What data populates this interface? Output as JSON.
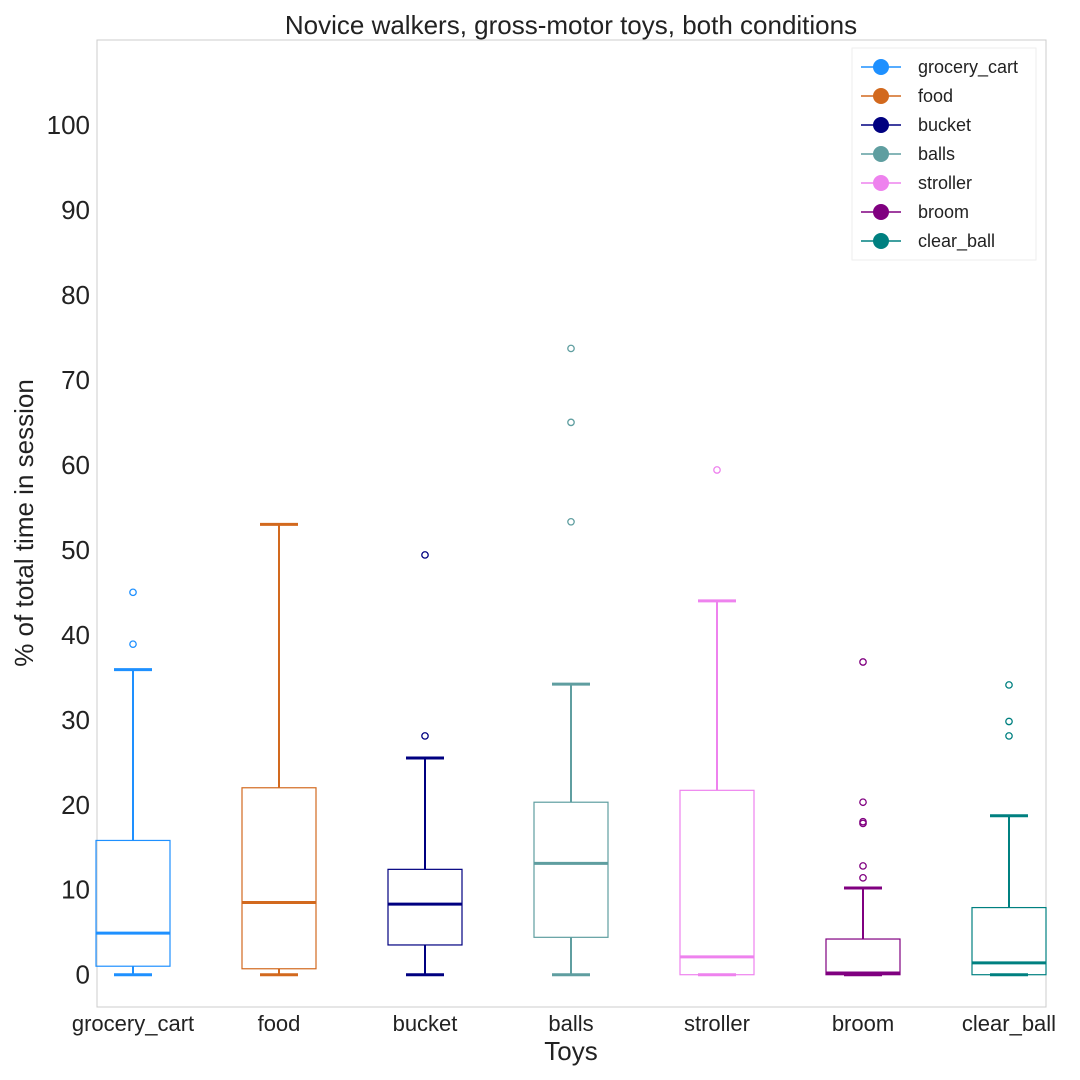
{
  "chart_data": {
    "type": "box",
    "title": "Novice walkers, gross-motor toys, both conditions",
    "xlabel": "Toys",
    "ylabel": "% of total time in session",
    "ylim": [
      -3.8,
      110
    ],
    "yticks": [
      0,
      10,
      20,
      30,
      40,
      50,
      60,
      70,
      80,
      90,
      100
    ],
    "grid": false,
    "legend_position": "top-right",
    "categories": [
      "grocery_cart",
      "food",
      "bucket",
      "balls",
      "stroller",
      "broom",
      "clear_ball"
    ],
    "series": [
      {
        "name": "grocery_cart",
        "color": "#1E90FF",
        "whisker_low": 0,
        "q1": 1.0,
        "median": 4.9,
        "q3": 15.8,
        "whisker_high": 35.9,
        "outliers": [
          38.9,
          45.0
        ]
      },
      {
        "name": "food",
        "color": "#D2691E",
        "whisker_low": 0,
        "q1": 0.7,
        "median": 8.5,
        "q3": 22.0,
        "whisker_high": 53.0,
        "outliers": []
      },
      {
        "name": "bucket",
        "color": "#000080",
        "whisker_low": 0,
        "q1": 3.5,
        "median": 8.3,
        "q3": 12.4,
        "whisker_high": 25.5,
        "outliers": [
          28.1,
          49.4
        ]
      },
      {
        "name": "balls",
        "color": "#5F9EA0",
        "whisker_low": 0,
        "q1": 4.4,
        "median": 13.1,
        "q3": 20.3,
        "whisker_high": 34.2,
        "outliers": [
          53.3,
          65.0,
          73.7
        ]
      },
      {
        "name": "stroller",
        "color": "#EE82EE",
        "whisker_low": 0,
        "q1": 0,
        "median": 2.1,
        "q3": 21.7,
        "whisker_high": 44.0,
        "outliers": [
          59.4
        ]
      },
      {
        "name": "broom",
        "color": "#800080",
        "whisker_low": 0,
        "q1": 0,
        "median": 0.2,
        "q3": 4.2,
        "whisker_high": 10.2,
        "outliers": [
          11.4,
          12.8,
          17.8,
          18.0,
          20.3,
          36.8
        ]
      },
      {
        "name": "clear_ball",
        "color": "#008080",
        "whisker_low": 0,
        "q1": 0,
        "median": 1.4,
        "q3": 7.9,
        "whisker_high": 18.7,
        "outliers": [
          28.1,
          29.8,
          34.1
        ]
      }
    ]
  }
}
